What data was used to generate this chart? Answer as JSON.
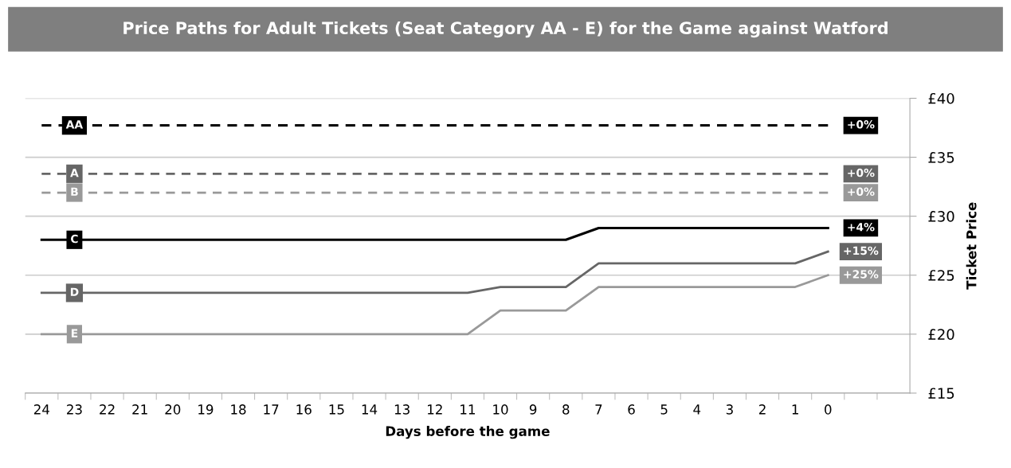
{
  "chart_data": {
    "type": "line",
    "title": "Price Paths for Adult Tickets (Seat Category AA - E) for the Game against Watford",
    "xlabel": "Days before the game",
    "ylabel": "Ticket Price",
    "categories": [
      "24",
      "23",
      "22",
      "21",
      "20",
      "19",
      "18",
      "17",
      "16",
      "15",
      "14",
      "13",
      "12",
      "11",
      "10",
      "9",
      "8",
      "7",
      "6",
      "5",
      "4",
      "3",
      "2",
      "1",
      "0",
      null,
      null
    ],
    "series": [
      {
        "name": "AA",
        "color": "#000000",
        "line_style": "dashed",
        "values": [
          37.7,
          37.7,
          37.7,
          37.7,
          37.7,
          37.7,
          37.7,
          37.7,
          37.7,
          37.7,
          37.7,
          37.7,
          37.7,
          37.7,
          37.7,
          37.7,
          37.7,
          37.7,
          37.7,
          37.7,
          37.7,
          37.7,
          37.7,
          37.7,
          37.7,
          null,
          null
        ]
      },
      {
        "name": "A",
        "color": "#666666",
        "line_style": "dashed",
        "values": [
          33.6,
          33.6,
          33.6,
          33.6,
          33.6,
          33.6,
          33.6,
          33.6,
          33.6,
          33.6,
          33.6,
          33.6,
          33.6,
          33.6,
          33.6,
          33.6,
          33.6,
          33.6,
          33.6,
          33.6,
          33.6,
          33.6,
          33.6,
          33.6,
          33.6,
          null,
          null
        ]
      },
      {
        "name": "B",
        "color": "#999999",
        "line_style": "dashed",
        "values": [
          32,
          32,
          32,
          32,
          32,
          32,
          32,
          32,
          32,
          32,
          32,
          32,
          32,
          32,
          32,
          32,
          32,
          32,
          32,
          32,
          32,
          32,
          32,
          32,
          32,
          null,
          null
        ]
      },
      {
        "name": "C",
        "color": "#000000",
        "line_style": "solid",
        "values": [
          28,
          28,
          28,
          28,
          28,
          28,
          28,
          28,
          28,
          28,
          28,
          28,
          28,
          28,
          28,
          28,
          28,
          29,
          29,
          29,
          29,
          29,
          29,
          29,
          29,
          null,
          null
        ]
      },
      {
        "name": "D",
        "color": "#666666",
        "line_style": "solid",
        "values": [
          23.5,
          23.5,
          23.5,
          23.5,
          23.5,
          23.5,
          23.5,
          23.5,
          23.5,
          23.5,
          23.5,
          23.5,
          23.5,
          23.5,
          24,
          24,
          24,
          26,
          26,
          26,
          26,
          26,
          26,
          26,
          27,
          null,
          null
        ]
      },
      {
        "name": "E",
        "color": "#999999",
        "line_style": "solid",
        "values": [
          20,
          20,
          20,
          20,
          20,
          20,
          20,
          20,
          20,
          20,
          20,
          20,
          20,
          20,
          22,
          22,
          22,
          24,
          24,
          24,
          24,
          24,
          24,
          24,
          25,
          null,
          null
        ]
      }
    ],
    "annotations": [
      "+0%",
      "+0%",
      "+0%",
      "+4%",
      "+15%",
      "+25%"
    ],
    "ylim": [
      15,
      40
    ],
    "yticks": [
      {
        "value": 15,
        "label": "£15"
      },
      {
        "value": 20,
        "label": "£20"
      },
      {
        "value": 25,
        "label": "£25"
      },
      {
        "value": 30,
        "label": "£30"
      },
      {
        "value": 35,
        "label": "£35"
      },
      {
        "value": 40,
        "label": "£40"
      }
    ],
    "grid": "y",
    "legend": false
  }
}
